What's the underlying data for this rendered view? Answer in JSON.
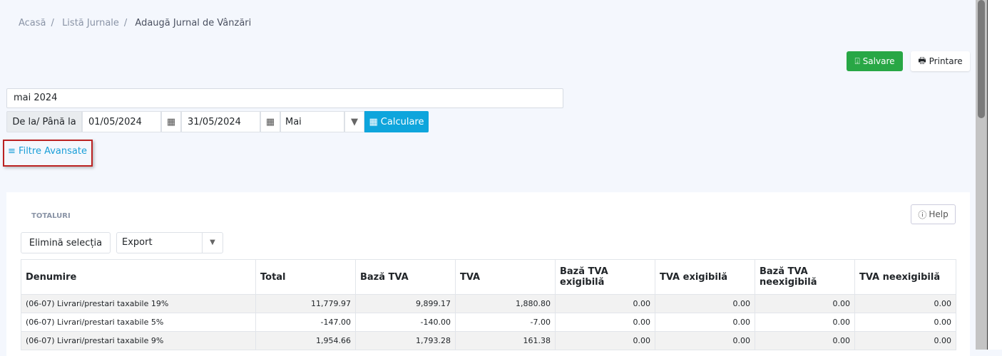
{
  "breadcrumb": [
    "Acasă",
    "Listă Jurnale",
    "Adaugă Jurnal de Vânzări"
  ],
  "toolbar": {
    "save_label": "Salvare",
    "print_label": "Printare"
  },
  "form": {
    "name_value": "mai 2024",
    "range_label": "De la/ Până la",
    "date_from": "01/05/2024",
    "date_to": "31/05/2024",
    "month": "Mai",
    "calc_label": "Calculare",
    "filters_label": "Filtre Avansate"
  },
  "panel": {
    "title": "TOTALURI",
    "help_label": "Help",
    "clear_label": "Elimină selecția",
    "export_label": "Export"
  },
  "table": {
    "headers": [
      "Denumire",
      "Total",
      "Bază TVA",
      "TVA",
      "Bază TVA exigibilă",
      "TVA exigibilă",
      "Bază TVA neexigibilă",
      "TVA neexigibilă"
    ],
    "rows": [
      [
        "(06-07) Livrari/prestari taxabile 19%",
        "11,779.97",
        "9,899.17",
        "1,880.80",
        "0.00",
        "0.00",
        "0.00",
        "0.00"
      ],
      [
        "(06-07) Livrari/prestari taxabile 5%",
        "-147.00",
        "-140.00",
        "-7.00",
        "0.00",
        "0.00",
        "0.00",
        "0.00"
      ],
      [
        "(06-07) Livrari/prestari taxabile 9%",
        "1,954.66",
        "1,793.28",
        "161.38",
        "0.00",
        "0.00",
        "0.00",
        "0.00"
      ]
    ]
  },
  "colors": {
    "save": "#28a745",
    "calc": "#0ea5dc",
    "link": "#1a9fd8",
    "highlight": "#b22222"
  }
}
